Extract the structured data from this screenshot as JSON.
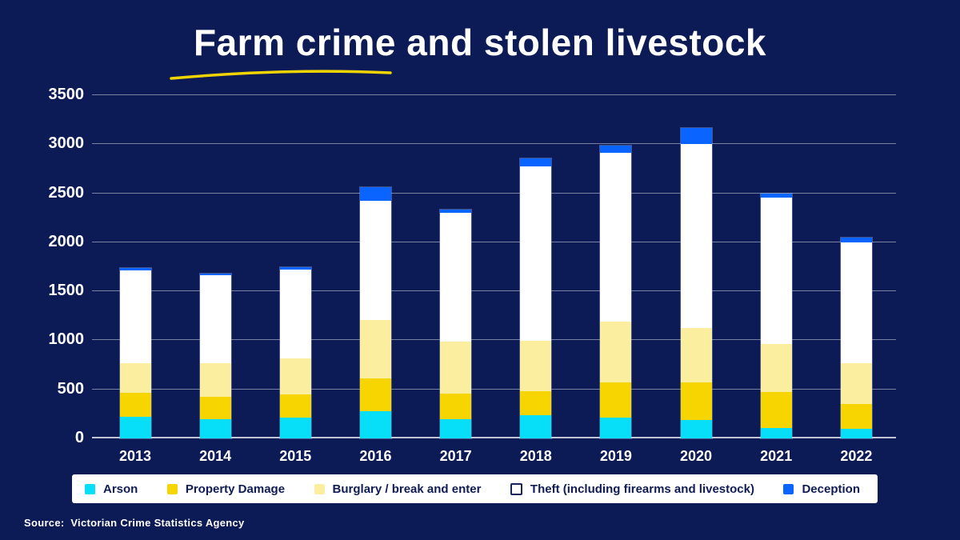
{
  "title": "Farm crime and stolen livestock",
  "source": "Source:  Victorian Crime Statistics Agency",
  "colors": {
    "background": "#0C1A56",
    "title_text": "#FFFFFF",
    "underline": "#EFD500",
    "legend_background": "#FFFFFF",
    "legend_text": "#101C54",
    "gridline": "rgba(255,255,255,0.45)"
  },
  "chart_data": {
    "type": "bar",
    "stacked": true,
    "title": "Farm crime and stolen livestock",
    "xlabel": "",
    "ylabel": "",
    "ylim": [
      0,
      3500
    ],
    "yticks": [
      0,
      500,
      1000,
      1500,
      2000,
      2500,
      3000,
      3500
    ],
    "grid": true,
    "legend_position": "bottom",
    "categories": [
      "2013",
      "2014",
      "2015",
      "2016",
      "2017",
      "2018",
      "2019",
      "2020",
      "2021",
      "2022"
    ],
    "series": [
      {
        "name": "Arson",
        "color": "#06DFF7",
        "values": [
          220,
          195,
          210,
          275,
          195,
          235,
          215,
          190,
          110,
          100
        ]
      },
      {
        "name": "Property Damage",
        "color": "#F6D500",
        "values": [
          245,
          230,
          235,
          340,
          265,
          245,
          355,
          380,
          365,
          250
        ]
      },
      {
        "name": "Burglary / break and enter",
        "color": "#FBEF9F",
        "values": [
          305,
          340,
          375,
          590,
          525,
          515,
          620,
          560,
          490,
          415
        ]
      },
      {
        "name": "Theft (including firearms and livestock)",
        "color": "#FFFFFF",
        "values": [
          945,
          900,
          905,
          1215,
          1320,
          1780,
          1720,
          1870,
          1490,
          1235
        ]
      },
      {
        "name": "Deception",
        "color": "#0A64FF",
        "values": [
          20,
          20,
          20,
          145,
          30,
          85,
          80,
          165,
          45,
          45
        ]
      }
    ],
    "totals": [
      1735,
      1685,
      1745,
      2565,
      2335,
      2860,
      2990,
      3165,
      2500,
      2045
    ]
  }
}
